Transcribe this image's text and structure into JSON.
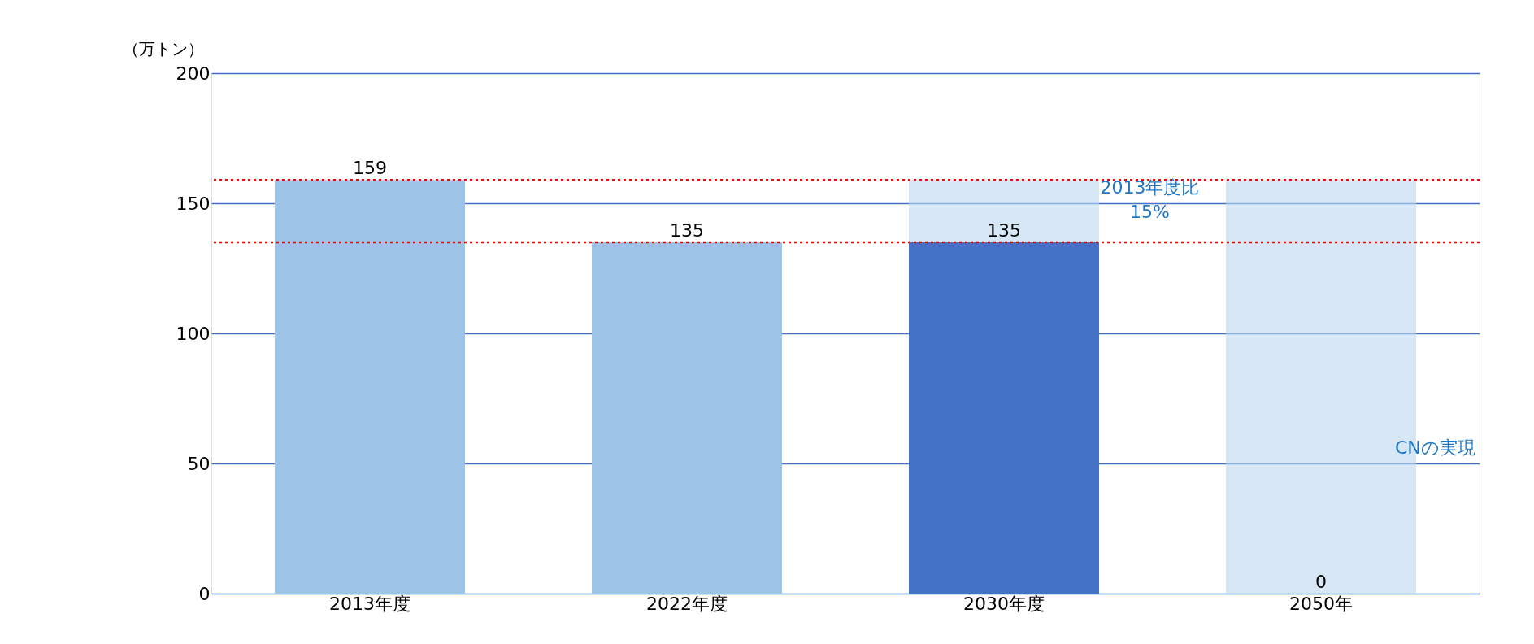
{
  "chart_data": {
    "type": "bar",
    "ylabel": "（万トン）",
    "categories": [
      "2013年度",
      "2022年度",
      "2030年度",
      "2050年"
    ],
    "series": [
      {
        "colors": [
          "#9dc3e6",
          "#9dc3e6",
          "#4472c4",
          "#4472c4"
        ],
        "values": [
          159,
          135,
          135,
          0
        ],
        "value_labels": [
          "159",
          "135",
          "135",
          "0"
        ]
      },
      {
        "color": "#bdd7ee",
        "base": [
          null,
          null,
          135,
          0
        ],
        "values": [
          null,
          null,
          24,
          159
        ]
      }
    ],
    "ylim": [
      0,
      200
    ],
    "yticks": [
      0,
      50,
      100,
      150,
      200
    ],
    "grid": "y",
    "ref_lines": [
      {
        "axis": "y",
        "value": 159,
        "color": "#ff0000",
        "line_style": "dotted"
      },
      {
        "axis": "y",
        "value": 135,
        "color": "#ff0000",
        "line_style": "dotted"
      }
    ],
    "annotations": [
      "2013年度比\n15%",
      "CNの実現"
    ]
  }
}
